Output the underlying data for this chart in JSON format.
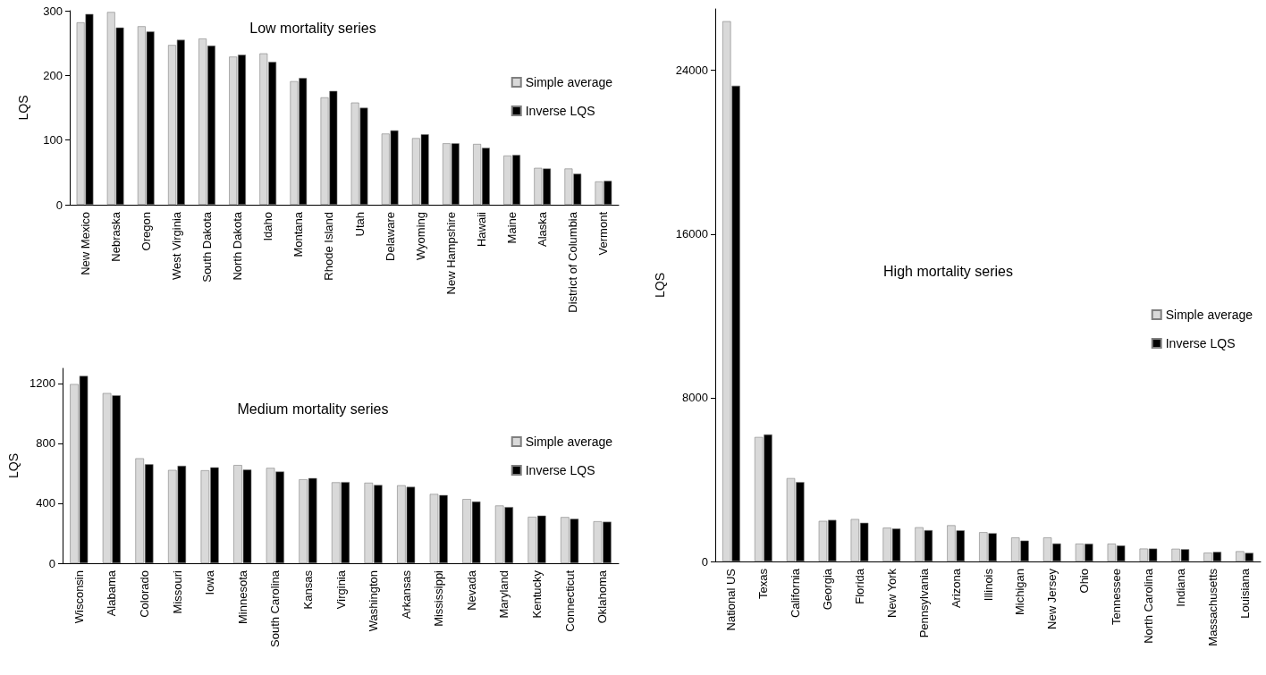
{
  "chart_data": [
    {
      "type": "bar",
      "title": "Low mortality series",
      "ylabel": "LQS",
      "categories": [
        "New Mexico",
        "Nebraska",
        "Oregon",
        "West Virginia",
        "South Dakota",
        "North Dakota",
        "Idaho",
        "Montana",
        "Rhode Island",
        "Utah",
        "Delaware",
        "Wyoming",
        "New Hampshire",
        "Hawaii",
        "Maine",
        "Alaska",
        "District of Columbia",
        "Vermont"
      ],
      "series": [
        {
          "name": "Simple average",
          "color": "#d9d9d9",
          "values": [
            282,
            298,
            276,
            247,
            257,
            229,
            234,
            191,
            166,
            158,
            110,
            103,
            95,
            94,
            76,
            57,
            56,
            36
          ]
        },
        {
          "name": "Inverse LQS",
          "color": "#000000",
          "values": [
            295,
            274,
            268,
            255,
            246,
            232,
            221,
            196,
            176,
            150,
            115,
            109,
            95,
            88,
            77,
            56,
            48,
            37
          ]
        }
      ],
      "ylim": [
        0,
        300
      ],
      "yticks": [
        0,
        100,
        200,
        300
      ],
      "grid": false,
      "legend": "right"
    },
    {
      "type": "bar",
      "title": "Medium mortality series",
      "ylabel": "LQS",
      "categories": [
        "Wisconsin",
        "Alabama",
        "Colorado",
        "Missouri",
        "Iowa",
        "Minnesota",
        "South Carolina",
        "Kansas",
        "Virginia",
        "Washington",
        "Arkansas",
        "Mississippi",
        "Nevada",
        "Maryland",
        "Kentucky",
        "Connecticut",
        "Oklahoma"
      ],
      "series": [
        {
          "name": "Simple average",
          "color": "#d9d9d9",
          "values": [
            1195,
            1135,
            700,
            622,
            620,
            655,
            636,
            560,
            540,
            537,
            520,
            462,
            428,
            385,
            310,
            308,
            280
          ]
        },
        {
          "name": "Inverse LQS",
          "color": "#000000",
          "values": [
            1250,
            1120,
            660,
            650,
            640,
            625,
            612,
            568,
            542,
            522,
            510,
            455,
            412,
            375,
            318,
            297,
            277
          ]
        }
      ],
      "ylim": [
        0,
        1300
      ],
      "yticks": [
        0,
        400,
        800,
        1200
      ],
      "grid": false,
      "legend": "right"
    },
    {
      "type": "bar",
      "title": "High mortality series",
      "ylabel": "LQS",
      "categories": [
        "National US",
        "Texas",
        "California",
        "Georgia",
        "Florida",
        "New York",
        "Pennsylvania",
        "Arizona",
        "Illinois",
        "Michigan",
        "New Jersey",
        "Ohio",
        "Tennessee",
        "North Carolina",
        "Indiana",
        "Massachusetts",
        "Louisiana"
      ],
      "series": [
        {
          "name": "Simple average",
          "color": "#d9d9d9",
          "values": [
            26400,
            6080,
            4070,
            1980,
            2070,
            1650,
            1670,
            1770,
            1430,
            1170,
            1170,
            870,
            870,
            630,
            620,
            430,
            500
          ]
        },
        {
          "name": "Inverse LQS",
          "color": "#000000",
          "values": [
            23250,
            6210,
            3880,
            2030,
            1890,
            1610,
            1530,
            1520,
            1380,
            1020,
            880,
            870,
            780,
            630,
            600,
            470,
            420
          ]
        }
      ],
      "ylim": [
        0,
        27000
      ],
      "yticks": [
        0,
        8000,
        16000,
        24000
      ],
      "grid": false,
      "legend": "right"
    }
  ]
}
